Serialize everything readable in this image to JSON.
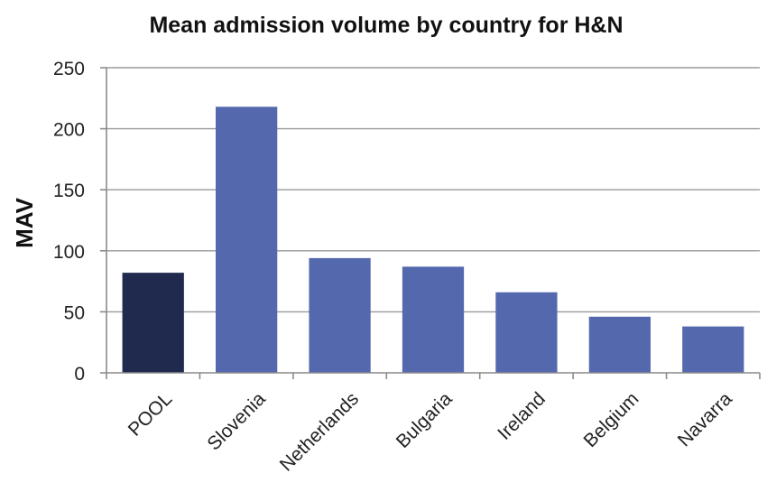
{
  "chart_data": {
    "type": "bar",
    "title": "Mean admission volume by country for H&N",
    "xlabel": "",
    "ylabel": "MAV",
    "categories": [
      "POOL",
      "Slovenia",
      "Netherlands",
      "Bulgaria",
      "Ireland",
      "Belgium",
      "Navarra"
    ],
    "values": [
      82,
      218,
      94,
      87,
      66,
      46,
      38
    ],
    "ylim": [
      0,
      250
    ],
    "yticks": [
      0,
      50,
      100,
      150,
      200,
      250
    ],
    "grid": true,
    "legend": "none",
    "colors": {
      "highlight": "#1f2a4e",
      "bar": "#5469ad"
    },
    "highlight_categories": [
      "POOL"
    ]
  }
}
